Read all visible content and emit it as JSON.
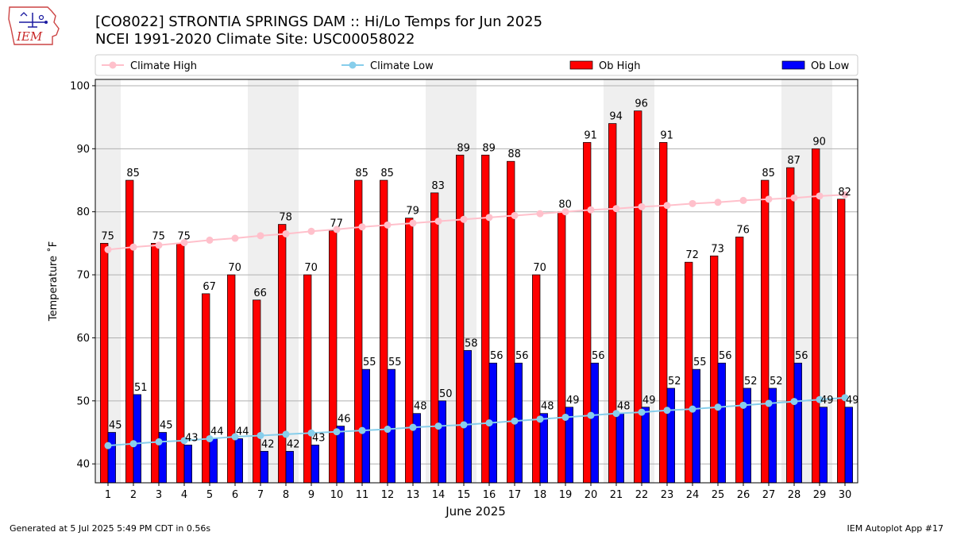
{
  "header": {
    "logo_text": "IEM",
    "title_line1": "[CO8022] STRONTIA SPRINGS DAM :: Hi/Lo Temps for Jun 2025",
    "title_line2": "NCEI 1991-2020 Climate Site: USC00058022"
  },
  "chart_data": {
    "type": "bar",
    "xlabel": "June 2025",
    "ylabel": "Temperature ˚F",
    "ylim": [
      37,
      101
    ],
    "yticks": [
      40,
      50,
      60,
      70,
      80,
      90,
      100
    ],
    "grid": true,
    "legend_position": "top",
    "weekend_shading": [
      [
        1,
        1
      ],
      [
        7,
        8
      ],
      [
        14,
        15
      ],
      [
        21,
        22
      ],
      [
        28,
        29
      ]
    ],
    "categories": [
      1,
      2,
      3,
      4,
      5,
      6,
      7,
      8,
      9,
      10,
      11,
      12,
      13,
      14,
      15,
      16,
      17,
      18,
      19,
      20,
      21,
      22,
      23,
      24,
      25,
      26,
      27,
      28,
      29,
      30
    ],
    "series": [
      {
        "name": "Climate High",
        "kind": "line",
        "color": "#ffc0cb",
        "values": [
          74.0,
          74.4,
          74.7,
          75.1,
          75.5,
          75.8,
          76.2,
          76.5,
          76.9,
          77.2,
          77.6,
          77.9,
          78.2,
          78.5,
          78.8,
          79.1,
          79.4,
          79.7,
          80.0,
          80.3,
          80.5,
          80.8,
          81.0,
          81.3,
          81.5,
          81.8,
          82.0,
          82.2,
          82.5,
          82.7
        ]
      },
      {
        "name": "Climate Low",
        "kind": "line",
        "color": "#87ceeb",
        "values": [
          42.9,
          43.2,
          43.5,
          43.7,
          44.0,
          44.3,
          44.5,
          44.7,
          44.9,
          45.1,
          45.3,
          45.5,
          45.8,
          46.0,
          46.2,
          46.5,
          46.8,
          47.1,
          47.4,
          47.7,
          48.0,
          48.2,
          48.5,
          48.7,
          49.0,
          49.3,
          49.6,
          49.9,
          50.2,
          50.5
        ]
      },
      {
        "name": "Ob High",
        "kind": "bar",
        "color": "#ff0000",
        "values": [
          75,
          85,
          75,
          75,
          67,
          70,
          66,
          78,
          70,
          77,
          85,
          85,
          79,
          83,
          89,
          89,
          88,
          70,
          80,
          91,
          94,
          96,
          91,
          72,
          73,
          76,
          85,
          87,
          90,
          82
        ]
      },
      {
        "name": "Ob Low",
        "kind": "bar",
        "color": "#0000ff",
        "values": [
          45,
          51,
          45,
          43,
          44,
          44,
          42,
          42,
          43,
          46,
          55,
          55,
          48,
          50,
          58,
          56,
          56,
          48,
          49,
          56,
          48,
          49,
          52,
          55,
          56,
          52,
          52,
          56,
          49,
          49
        ]
      }
    ]
  },
  "footer": {
    "left": "Generated at 5 Jul 2025 5:49 PM CDT in 0.56s",
    "right": "IEM Autoplot App #17"
  }
}
